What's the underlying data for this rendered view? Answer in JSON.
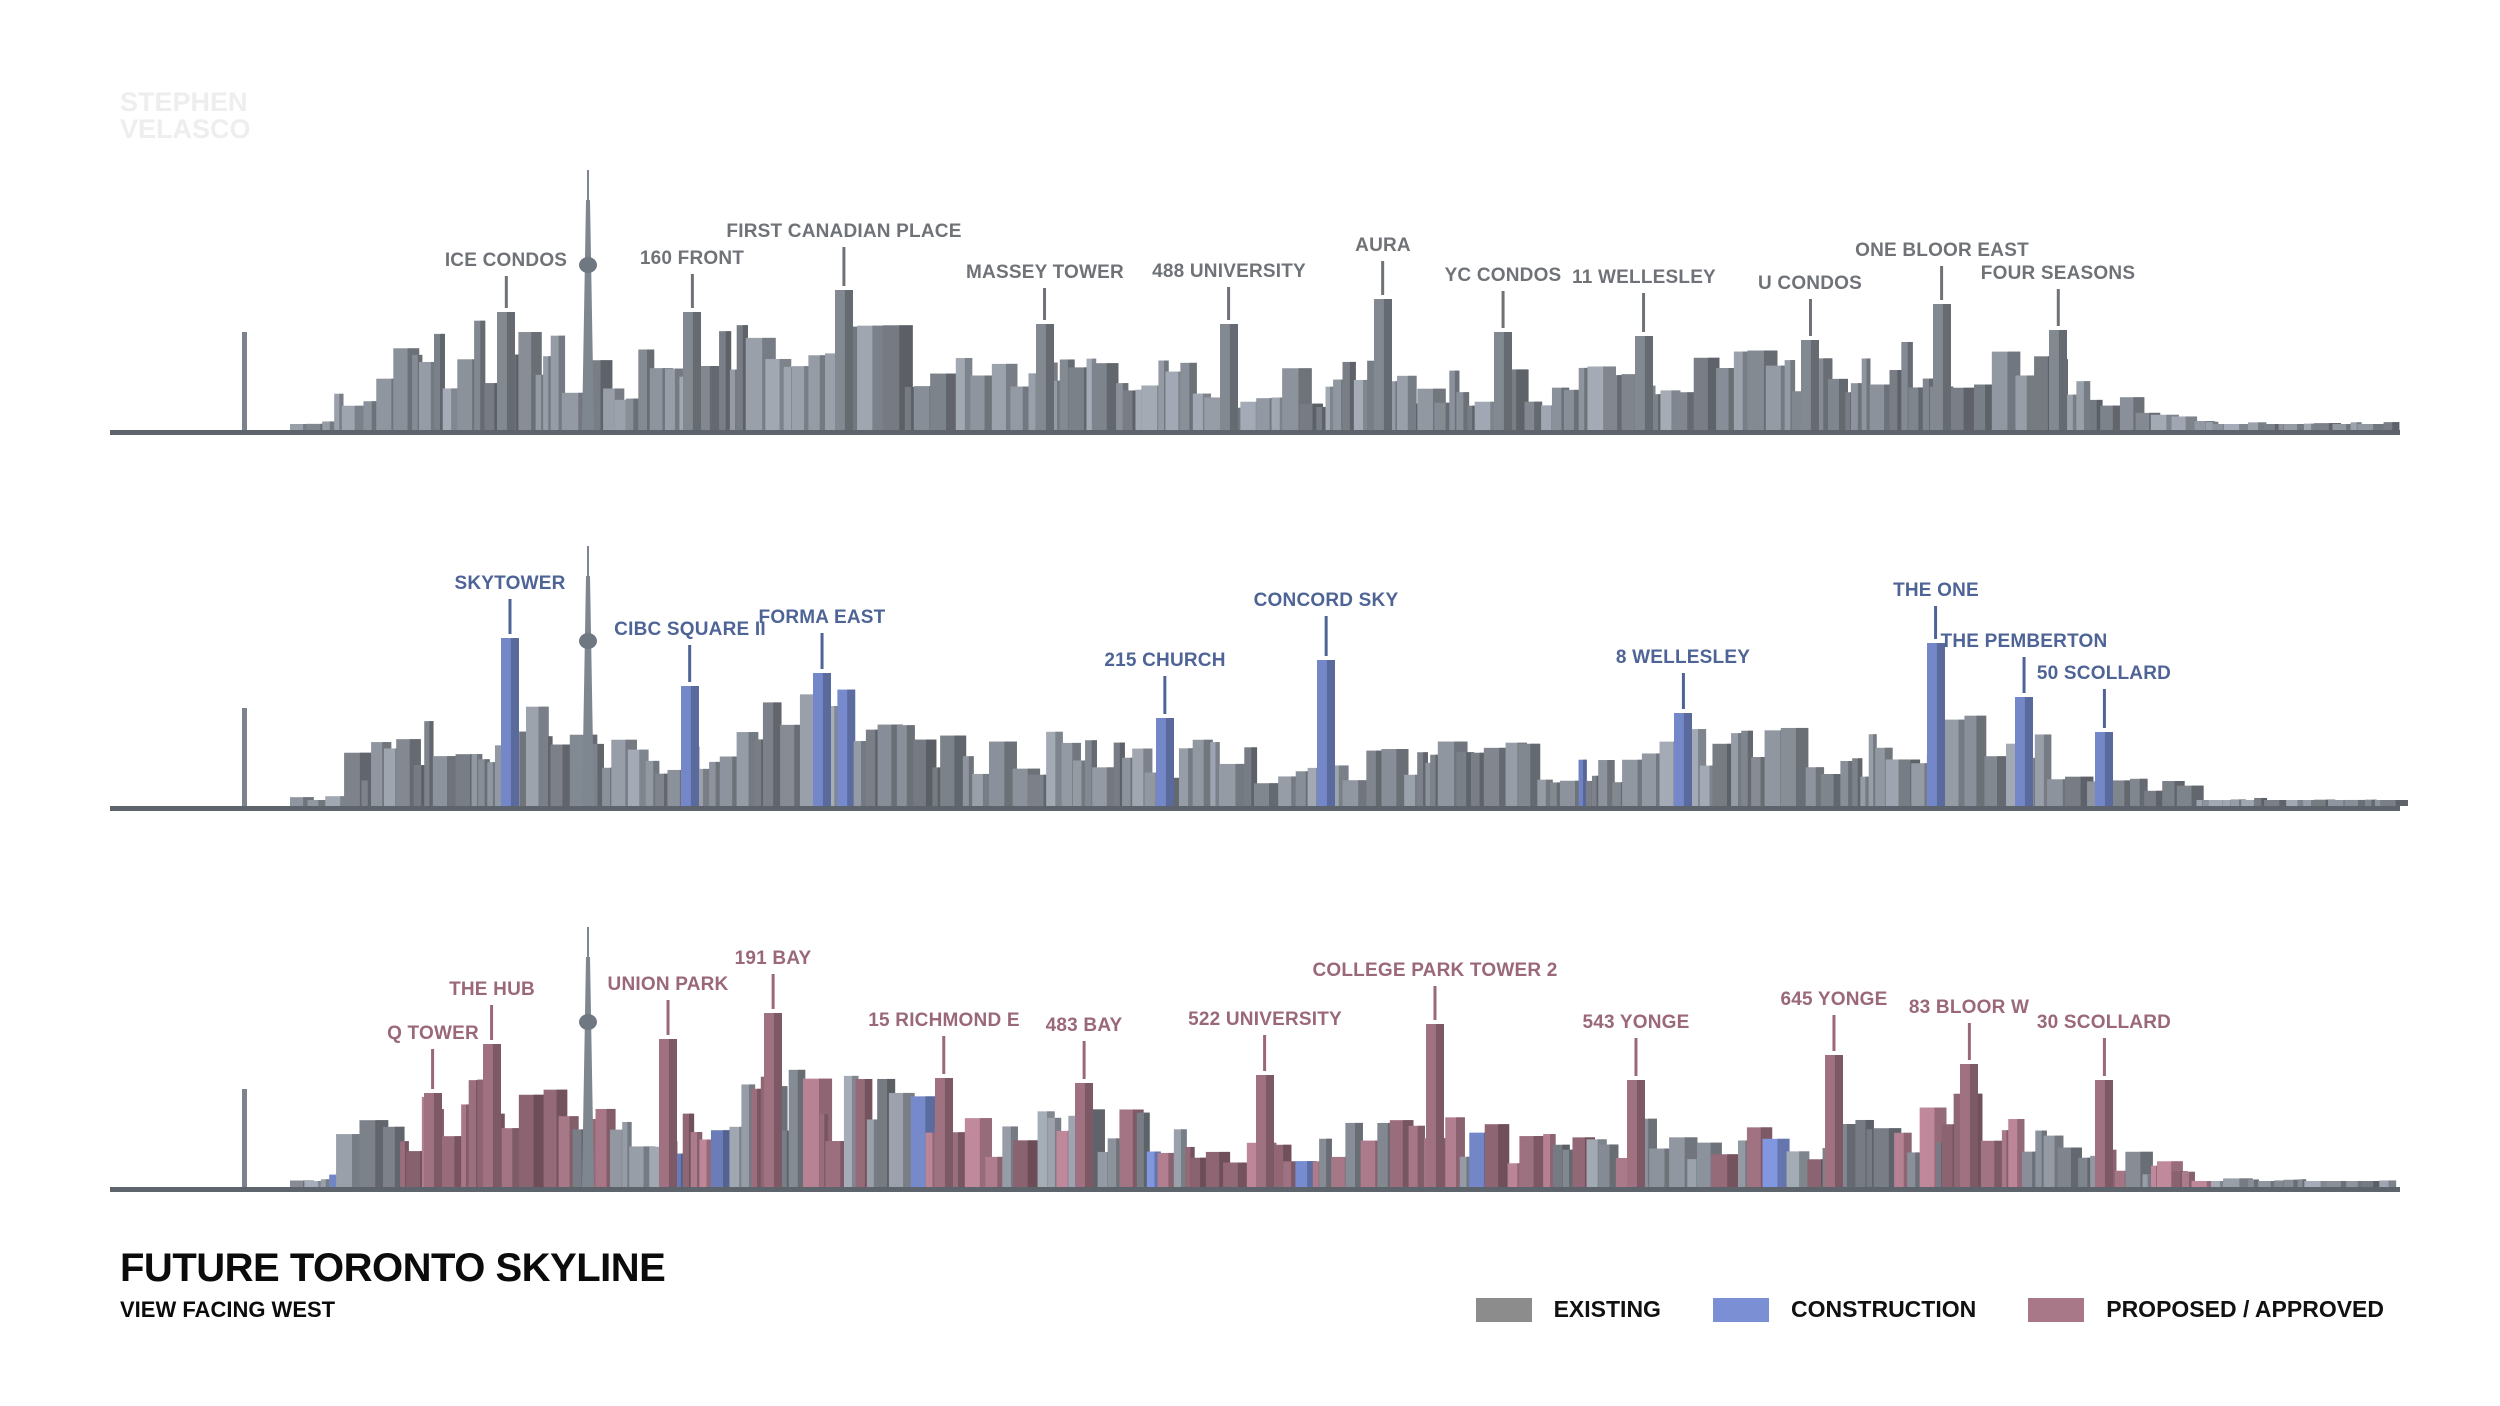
{
  "watermark": {
    "line1": "STEPHEN",
    "line2": "VELASCO"
  },
  "colors": {
    "existing": "#8c8c8c",
    "construction": "#7a8fd4",
    "proposed": "#a87888",
    "existing_label": "#6f7378",
    "construction_label": "#4f6496",
    "proposed_label": "#9a6878"
  },
  "panels": [
    {
      "name": "existing",
      "labels": [
        "ICE CONDOS",
        "160 FRONT",
        "FIRST CANADIAN PLACE",
        "MASSEY TOWER",
        "488 UNIVERSITY",
        "AURA",
        "YC CONDOS",
        "11 WELLESLEY",
        "U CONDOS",
        "ONE BLOOR EAST",
        "FOUR SEASONS"
      ]
    },
    {
      "name": "construction",
      "labels": [
        "SKYTOWER",
        "CIBC SQUARE II",
        "FORMA EAST",
        "215 CHURCH",
        "CONCORD SKY",
        "8 WELLESLEY",
        "THE ONE",
        "THE PEMBERTON",
        "50 SCOLLARD"
      ]
    },
    {
      "name": "proposed",
      "labels": [
        "Q TOWER",
        "THE HUB",
        "UNION PARK",
        "191 BAY",
        "15 RICHMOND E",
        "483 BAY",
        "522 UNIVERSITY",
        "COLLEGE PARK TOWER 2",
        "543 YONGE",
        "645 YONGE",
        "83 BLOOR W",
        "30 SCOLLARD"
      ]
    }
  ],
  "title": "FUTURE TORONTO SKYLINE",
  "subtitle": "VIEW FACING WEST",
  "legend": [
    {
      "label": "EXISTING",
      "color": "#8c8c8c"
    },
    {
      "label": "CONSTRUCTION",
      "color": "#7a8fd4"
    },
    {
      "label": "PROPOSED / APPROVED",
      "color": "#a87888"
    }
  ]
}
